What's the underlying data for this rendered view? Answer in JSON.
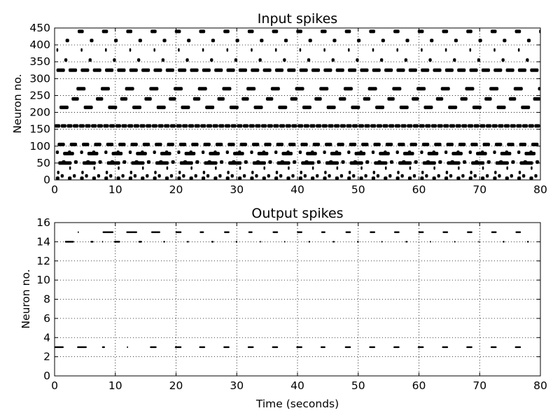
{
  "chart_data": [
    {
      "type": "raster",
      "title": "Input spikes",
      "xlabel": "",
      "ylabel": "Neuron no.",
      "xlim": [
        0,
        80
      ],
      "ylim": [
        0,
        450
      ],
      "xticks": [
        "0",
        "10",
        "20",
        "30",
        "40",
        "50",
        "60",
        "70",
        "80"
      ],
      "yticks": [
        "0",
        "50",
        "100",
        "150",
        "200",
        "250",
        "300",
        "350",
        "400",
        "450"
      ],
      "grid": true,
      "spike_rows": [
        {
          "neuron": 5,
          "period": 2.0,
          "offset": 0.2,
          "duration": 0.6
        },
        {
          "neuron": 12,
          "period": 2.0,
          "offset": 1.0,
          "duration": 0.5
        },
        {
          "neuron": 22,
          "period": 4.0,
          "offset": 0.4,
          "duration": 0.4
        },
        {
          "neuron": 35,
          "period": 4.0,
          "offset": 2.4,
          "duration": 0.3
        },
        {
          "neuron": 50,
          "period": 4.0,
          "offset": 0.6,
          "duration": 2.2
        },
        {
          "neuron": 53,
          "period": 2.0,
          "offset": 1.2,
          "duration": 0.6
        },
        {
          "neuron": 78,
          "period": 4.0,
          "offset": 1.4,
          "duration": 1.8
        },
        {
          "neuron": 82,
          "period": 2.0,
          "offset": 0.2,
          "duration": 0.5
        },
        {
          "neuron": 105,
          "period": 2.0,
          "offset": 0.5,
          "duration": 1.2
        },
        {
          "neuron": 160,
          "period": 1.0,
          "offset": 0.0,
          "duration": 0.95
        },
        {
          "neuron": 215,
          "period": 4.0,
          "offset": 0.8,
          "duration": 1.5
        },
        {
          "neuron": 240,
          "period": 4.0,
          "offset": 2.8,
          "duration": 1.2
        },
        {
          "neuron": 270,
          "period": 4.0,
          "offset": 3.6,
          "duration": 1.5
        },
        {
          "neuron": 325,
          "period": 2.0,
          "offset": 0.3,
          "duration": 1.4
        },
        {
          "neuron": 355,
          "period": 4.0,
          "offset": 1.6,
          "duration": 0.5
        },
        {
          "neuron": 385,
          "period": 4.0,
          "offset": 0.3,
          "duration": 0.3
        },
        {
          "neuron": 413,
          "period": 4.0,
          "offset": 1.8,
          "duration": 0.6
        },
        {
          "neuron": 440,
          "period": 4.0,
          "offset": 3.8,
          "duration": 1.0
        }
      ]
    },
    {
      "type": "raster",
      "title": "Output spikes",
      "xlabel": "Time (seconds)",
      "ylabel": "Neuron no.",
      "xlim": [
        0,
        80
      ],
      "ylim": [
        0,
        16
      ],
      "xticks": [
        "0",
        "10",
        "20",
        "30",
        "40",
        "50",
        "60",
        "70",
        "80"
      ],
      "yticks": [
        "0",
        "2",
        "4",
        "6",
        "8",
        "10",
        "12",
        "14",
        "16"
      ],
      "grid": true,
      "spikes": [
        {
          "neuron": 3,
          "x": [
            [
              0,
              1.5
            ],
            [
              3.7,
              5.3
            ],
            [
              7.8,
              8.3
            ],
            [
              11.9,
              12.1
            ],
            [
              15.7,
              16.8
            ],
            [
              19.8,
              20.9
            ],
            [
              23.8,
              24.8
            ],
            [
              27.8,
              28.8
            ],
            [
              31.8,
              32.8
            ],
            [
              35.8,
              36.8
            ],
            [
              39.8,
              40.8
            ],
            [
              43.8,
              44.6
            ],
            [
              47.8,
              48.8
            ],
            [
              51.8,
              52.8
            ],
            [
              55.8,
              56.8
            ],
            [
              59.8,
              60.8
            ],
            [
              63.8,
              64.8
            ],
            [
              67.8,
              68.8
            ],
            [
              71.8,
              72.8
            ],
            [
              75.8,
              76.8
            ]
          ]
        },
        {
          "neuron": 14,
          "x": [
            [
              1.7,
              3.2
            ],
            [
              5.9,
              6.4
            ],
            [
              7.8,
              8.0
            ],
            [
              9.8,
              10.8
            ],
            [
              13.8,
              14.4
            ],
            [
              17.9,
              18.2
            ],
            [
              21.8,
              22.1
            ],
            [
              25.8,
              26.2
            ],
            [
              29.8,
              30.1
            ],
            [
              33.8,
              34.0
            ],
            [
              37.8,
              38.0
            ],
            [
              41.8,
              42.1
            ],
            [
              45.8,
              46.1
            ],
            [
              49.8,
              50.1
            ],
            [
              53.8,
              54.0
            ],
            [
              57.8,
              58.1
            ],
            [
              61.8,
              62.0
            ],
            [
              65.8,
              66.0
            ],
            [
              69.8,
              70.0
            ],
            [
              73.8,
              74.1
            ],
            [
              77.8,
              78.1
            ]
          ]
        },
        {
          "neuron": 15,
          "x": [
            [
              3.8,
              4.0
            ],
            [
              7.9,
              9.7
            ],
            [
              11.8,
              13.6
            ],
            [
              15.9,
              17.4
            ],
            [
              19.9,
              20.9
            ],
            [
              23.9,
              24.6
            ],
            [
              27.9,
              28.8
            ],
            [
              31.9,
              32.6
            ],
            [
              35.9,
              36.8
            ],
            [
              39.9,
              40.8
            ],
            [
              43.9,
              44.6
            ],
            [
              47.9,
              48.8
            ],
            [
              51.9,
              52.8
            ],
            [
              55.9,
              56.8
            ],
            [
              59.9,
              60.8
            ],
            [
              63.9,
              64.8
            ],
            [
              67.9,
              68.8
            ],
            [
              71.9,
              72.8
            ],
            [
              75.9,
              76.8
            ]
          ]
        }
      ]
    }
  ]
}
